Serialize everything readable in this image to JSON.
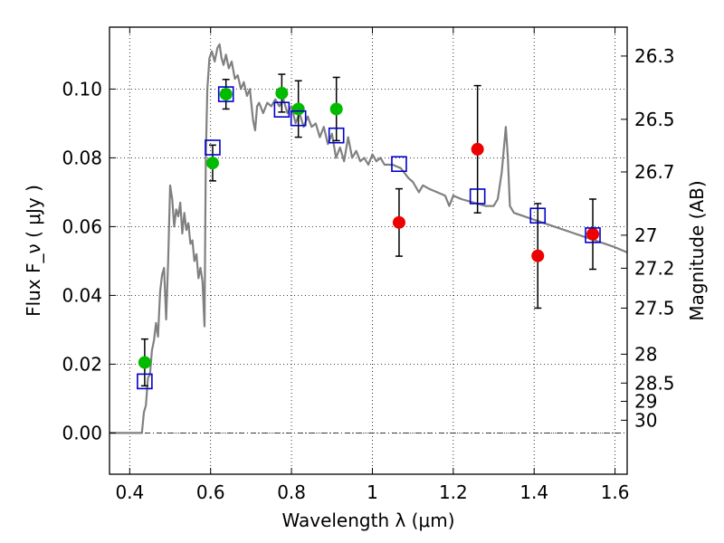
{
  "chart_data": {
    "type": "scatter",
    "xlabel": "Wavelength  λ (μm)",
    "ylabel": "Flux  F_ν  ( μJy )",
    "y2label": "Magnitude (AB)",
    "xlim": [
      0.35,
      1.63
    ],
    "ylim": [
      -0.012,
      0.118
    ],
    "x_ticks": [
      0.4,
      0.6,
      0.8,
      1.0,
      1.2,
      1.4,
      1.6
    ],
    "x_tick_labels": [
      "0.4",
      "0.6",
      "0.8",
      "1",
      "1.2",
      "1.4",
      "1.6"
    ],
    "y_ticks": [
      0.0,
      0.02,
      0.04,
      0.06,
      0.08,
      0.1
    ],
    "y_tick_labels": [
      "0.00",
      "0.02",
      "0.04",
      "0.06",
      "0.08",
      "0.10"
    ],
    "y2_ticks": [
      {
        "label": "26.3",
        "flux": 0.1096
      },
      {
        "label": "26.5",
        "flux": 0.0912
      },
      {
        "label": "26.7",
        "flux": 0.0759
      },
      {
        "label": "27",
        "flux": 0.0575
      },
      {
        "label": "27.2",
        "flux": 0.0479
      },
      {
        "label": "27.5",
        "flux": 0.0363
      },
      {
        "label": "28",
        "flux": 0.0229
      },
      {
        "label": "28.5",
        "flux": 0.0145
      },
      {
        "label": "29",
        "flux": 0.0092
      },
      {
        "label": "30",
        "flux": 0.0037
      }
    ],
    "grid": true,
    "colors": {
      "model": "#808080",
      "green": "#00bb00",
      "red": "#ee0000",
      "square": "#0000cc",
      "errorbar": "#000000"
    },
    "model_sed": [
      [
        0.35,
        0.0
      ],
      [
        0.43,
        0.0
      ],
      [
        0.435,
        0.006
      ],
      [
        0.44,
        0.008
      ],
      [
        0.445,
        0.016
      ],
      [
        0.45,
        0.017
      ],
      [
        0.455,
        0.024
      ],
      [
        0.46,
        0.027
      ],
      [
        0.465,
        0.032
      ],
      [
        0.47,
        0.028
      ],
      [
        0.475,
        0.041
      ],
      [
        0.48,
        0.046
      ],
      [
        0.485,
        0.048
      ],
      [
        0.49,
        0.033
      ],
      [
        0.495,
        0.05
      ],
      [
        0.5,
        0.072
      ],
      [
        0.505,
        0.068
      ],
      [
        0.51,
        0.06
      ],
      [
        0.515,
        0.065
      ],
      [
        0.52,
        0.063
      ],
      [
        0.525,
        0.067
      ],
      [
        0.53,
        0.058
      ],
      [
        0.535,
        0.064
      ],
      [
        0.54,
        0.059
      ],
      [
        0.545,
        0.061
      ],
      [
        0.55,
        0.055
      ],
      [
        0.555,
        0.056
      ],
      [
        0.56,
        0.05
      ],
      [
        0.565,
        0.052
      ],
      [
        0.57,
        0.045
      ],
      [
        0.575,
        0.048
      ],
      [
        0.58,
        0.044
      ],
      [
        0.585,
        0.031
      ],
      [
        0.588,
        0.08
      ],
      [
        0.592,
        0.1
      ],
      [
        0.597,
        0.109
      ],
      [
        0.603,
        0.111
      ],
      [
        0.61,
        0.108
      ],
      [
        0.617,
        0.112
      ],
      [
        0.622,
        0.113
      ],
      [
        0.627,
        0.109
      ],
      [
        0.632,
        0.107
      ],
      [
        0.638,
        0.11
      ],
      [
        0.645,
        0.106
      ],
      [
        0.652,
        0.108
      ],
      [
        0.66,
        0.103
      ],
      [
        0.667,
        0.104
      ],
      [
        0.675,
        0.1
      ],
      [
        0.682,
        0.102
      ],
      [
        0.69,
        0.098
      ],
      [
        0.697,
        0.1
      ],
      [
        0.705,
        0.091
      ],
      [
        0.71,
        0.088
      ],
      [
        0.715,
        0.095
      ],
      [
        0.72,
        0.096
      ],
      [
        0.73,
        0.093
      ],
      [
        0.74,
        0.096
      ],
      [
        0.75,
        0.095
      ],
      [
        0.76,
        0.097
      ],
      [
        0.77,
        0.095
      ],
      [
        0.78,
        0.097
      ],
      [
        0.79,
        0.093
      ],
      [
        0.8,
        0.095
      ],
      [
        0.81,
        0.09
      ],
      [
        0.82,
        0.093
      ],
      [
        0.83,
        0.089
      ],
      [
        0.84,
        0.092
      ],
      [
        0.85,
        0.089
      ],
      [
        0.86,
        0.09
      ],
      [
        0.87,
        0.086
      ],
      [
        0.88,
        0.089
      ],
      [
        0.89,
        0.084
      ],
      [
        0.9,
        0.087
      ],
      [
        0.91,
        0.08
      ],
      [
        0.92,
        0.083
      ],
      [
        0.93,
        0.079
      ],
      [
        0.94,
        0.086
      ],
      [
        0.95,
        0.08
      ],
      [
        0.96,
        0.082
      ],
      [
        0.97,
        0.079
      ],
      [
        0.98,
        0.08
      ],
      [
        0.99,
        0.078
      ],
      [
        1.0,
        0.081
      ],
      [
        1.01,
        0.079
      ],
      [
        1.02,
        0.08
      ],
      [
        1.03,
        0.078
      ],
      [
        1.05,
        0.078
      ],
      [
        1.07,
        0.077
      ],
      [
        1.09,
        0.074
      ],
      [
        1.1,
        0.073
      ],
      [
        1.115,
        0.07
      ],
      [
        1.125,
        0.072
      ],
      [
        1.14,
        0.071
      ],
      [
        1.16,
        0.07
      ],
      [
        1.18,
        0.069
      ],
      [
        1.19,
        0.066
      ],
      [
        1.2,
        0.069
      ],
      [
        1.22,
        0.068
      ],
      [
        1.25,
        0.067
      ],
      [
        1.28,
        0.066
      ],
      [
        1.3,
        0.066
      ],
      [
        1.31,
        0.068
      ],
      [
        1.32,
        0.076
      ],
      [
        1.33,
        0.089
      ],
      [
        1.335,
        0.08
      ],
      [
        1.34,
        0.066
      ],
      [
        1.35,
        0.064
      ],
      [
        1.4,
        0.062
      ],
      [
        1.45,
        0.06
      ],
      [
        1.5,
        0.058
      ],
      [
        1.55,
        0.056
      ],
      [
        1.6,
        0.054
      ],
      [
        1.63,
        0.0525
      ]
    ],
    "green_points": [
      {
        "x": 0.437,
        "y": 0.0205,
        "err": 0.0068
      },
      {
        "x": 0.605,
        "y": 0.0785,
        "err": 0.0052
      },
      {
        "x": 0.638,
        "y": 0.0985,
        "err": 0.0043
      },
      {
        "x": 0.776,
        "y": 0.0988,
        "err": 0.0055
      },
      {
        "x": 0.817,
        "y": 0.0942,
        "err": 0.0082
      },
      {
        "x": 0.911,
        "y": 0.0942,
        "err": 0.0092
      }
    ],
    "red_points": [
      {
        "x": 1.066,
        "y": 0.0612,
        "err": 0.0098
      },
      {
        "x": 1.26,
        "y": 0.0825,
        "err": 0.0185
      },
      {
        "x": 1.409,
        "y": 0.0515,
        "err": 0.0152
      },
      {
        "x": 1.545,
        "y": 0.0578,
        "err": 0.0102
      }
    ],
    "model_squares": [
      {
        "x": 0.437,
        "y": 0.015
      },
      {
        "x": 0.605,
        "y": 0.083
      },
      {
        "x": 0.638,
        "y": 0.0985
      },
      {
        "x": 0.776,
        "y": 0.094
      },
      {
        "x": 0.817,
        "y": 0.0915
      },
      {
        "x": 0.911,
        "y": 0.0865
      },
      {
        "x": 1.066,
        "y": 0.0782
      },
      {
        "x": 1.26,
        "y": 0.0688
      },
      {
        "x": 1.409,
        "y": 0.0632
      },
      {
        "x": 1.545,
        "y": 0.0575
      }
    ]
  }
}
